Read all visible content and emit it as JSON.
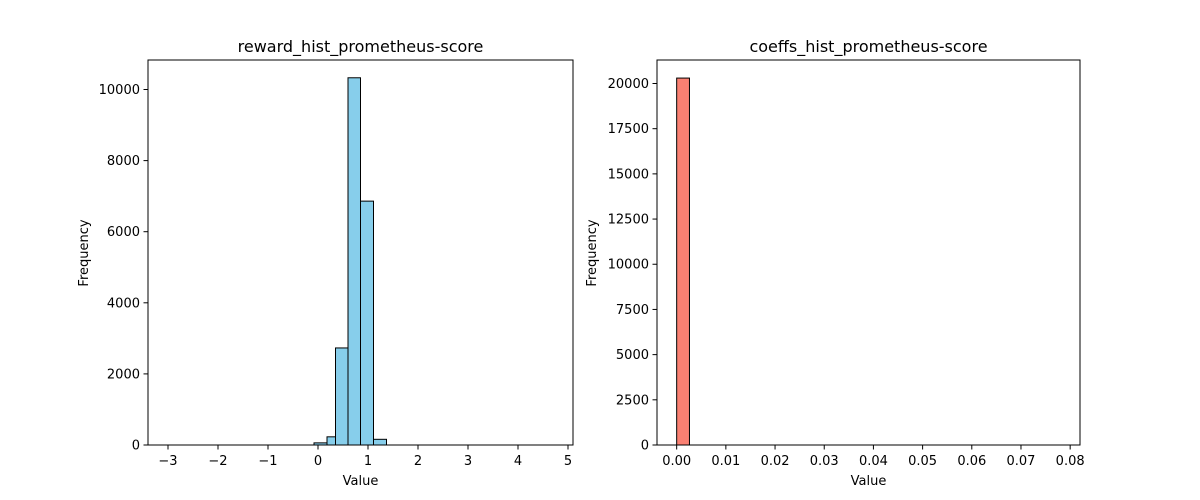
{
  "chart_data": [
    {
      "type": "bar",
      "title": "reward_hist_prometheus-score",
      "xlabel": "Value",
      "ylabel": "Frequency",
      "xlim": [
        -3.4,
        5.1
      ],
      "ylim": [
        0,
        10830
      ],
      "xticks": [
        -3,
        -2,
        -1,
        0,
        1,
        2,
        3,
        4,
        5
      ],
      "yticks": [
        0,
        2000,
        4000,
        6000,
        8000,
        10000
      ],
      "bar_color": "#87CEEB",
      "edge_color": "#000000",
      "grid": false,
      "bins": [
        {
          "x0": -0.08,
          "x1": 0.18,
          "value": 60
        },
        {
          "x0": 0.18,
          "x1": 0.35,
          "value": 230
        },
        {
          "x0": 0.35,
          "x1": 0.6,
          "value": 2730
        },
        {
          "x0": 0.6,
          "x1": 0.85,
          "value": 10330
        },
        {
          "x0": 0.85,
          "x1": 1.11,
          "value": 6860
        },
        {
          "x0": 1.11,
          "x1": 1.37,
          "value": 160
        }
      ],
      "tail_range": [
        -3.0,
        4.75
      ],
      "tail_value": 0
    },
    {
      "type": "bar",
      "title": "coeffs_hist_prometheus-score",
      "xlabel": "Value",
      "ylabel": "Frequency",
      "xlim": [
        -0.004,
        0.082
      ],
      "ylim": [
        0,
        21300
      ],
      "xticks": [
        0.0,
        0.01,
        0.02,
        0.03,
        0.04,
        0.05,
        0.06,
        0.07,
        0.08
      ],
      "xtick_labels": [
        "0.00",
        "0.01",
        "0.02",
        "0.03",
        "0.04",
        "0.05",
        "0.06",
        "0.07",
        "0.08"
      ],
      "yticks": [
        0,
        2500,
        5000,
        7500,
        10000,
        12500,
        15000,
        17500,
        20000
      ],
      "bar_color": "#FA8072",
      "edge_color": "#000000",
      "grid": false,
      "bins": [
        {
          "x0": 0.0,
          "x1": 0.0026,
          "value": 20300
        }
      ],
      "tail_range": [
        0.0,
        0.078
      ],
      "tail_value": 0
    }
  ]
}
